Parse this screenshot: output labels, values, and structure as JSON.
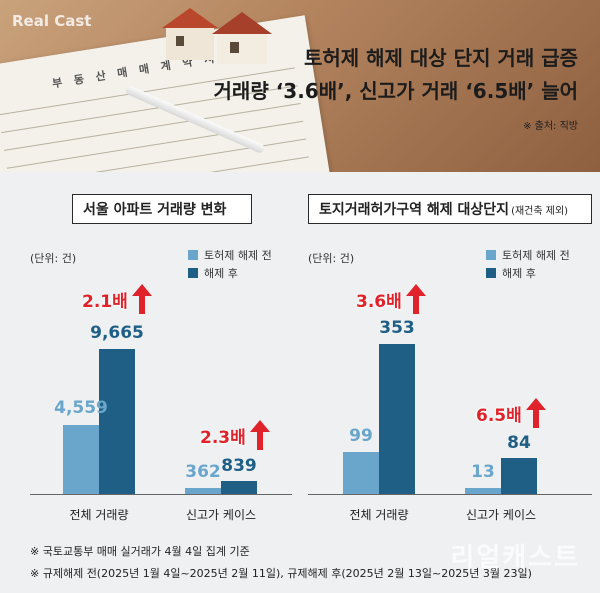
{
  "header": {
    "logo": "Real Cast",
    "document_label": "부 동 산 매 매 계 약 서",
    "title_line1": "토허제 해제 대상 단지 거래 급증",
    "title_line2": "거래량 ‘3.6배’, 신고가 거래 ‘6.5배’ 늘어",
    "source": "※ 출처: 직방"
  },
  "colors": {
    "before": "#6aa6cb",
    "after": "#1f5f86",
    "arrow": "#e0232b"
  },
  "panels": [
    {
      "title": "서울 아파트 거래량 변화",
      "subtitle": "",
      "unit": "(단위: 건)",
      "legend": [
        "토허제 해제 전",
        "해제 후"
      ],
      "categories": [
        "전체 거래량",
        "신고가 케이스"
      ],
      "before_labels": [
        "4,559",
        "362"
      ],
      "after_labels": [
        "9,665",
        "839"
      ],
      "multipliers": [
        "2.1배",
        "2.3배"
      ]
    },
    {
      "title": "토지거래허가구역 해제 대상단지",
      "subtitle": "(재건축 제외)",
      "unit": "(단위: 건)",
      "legend": [
        "토허제 해제 전",
        "해제 후"
      ],
      "categories": [
        "전체 거래량",
        "신고가 케이스"
      ],
      "before_labels": [
        "99",
        "13"
      ],
      "after_labels": [
        "353",
        "84"
      ],
      "multipliers": [
        "3.6배",
        "6.5배"
      ]
    }
  ],
  "chart_data": [
    {
      "type": "bar",
      "title": "서울 아파트 거래량 변화",
      "ylabel": "(단위: 건)",
      "categories": [
        "전체 거래량",
        "신고가 케이스"
      ],
      "series": [
        {
          "name": "토허제 해제 전",
          "values": [
            4559,
            362
          ]
        },
        {
          "name": "해제 후",
          "values": [
            9665,
            839
          ]
        }
      ],
      "annotations": [
        "2.1배",
        "2.3배"
      ],
      "legend": "top-right",
      "grid": false
    },
    {
      "type": "bar",
      "title": "토지거래허가구역 해제 대상단지",
      "subtitle": "(재건축 제외)",
      "ylabel": "(단위: 건)",
      "categories": [
        "전체 거래량",
        "신고가 케이스"
      ],
      "series": [
        {
          "name": "토허제 해제 전",
          "values": [
            99,
            13
          ]
        },
        {
          "name": "해제 후",
          "values": [
            353,
            84
          ]
        }
      ],
      "annotations": [
        "3.6배",
        "6.5배"
      ],
      "legend": "top-right",
      "grid": false
    }
  ],
  "notes": [
    "※ 국토교통부 매매 실거래가 4월 4일 집계 기준",
    "※ 규제해제 전(2025년 1월 4일~2025년 2월 11일), 규제해제 후(2025년 2월 13일~2025년 3월 23일)"
  ],
  "watermark": "리얼캐스트"
}
